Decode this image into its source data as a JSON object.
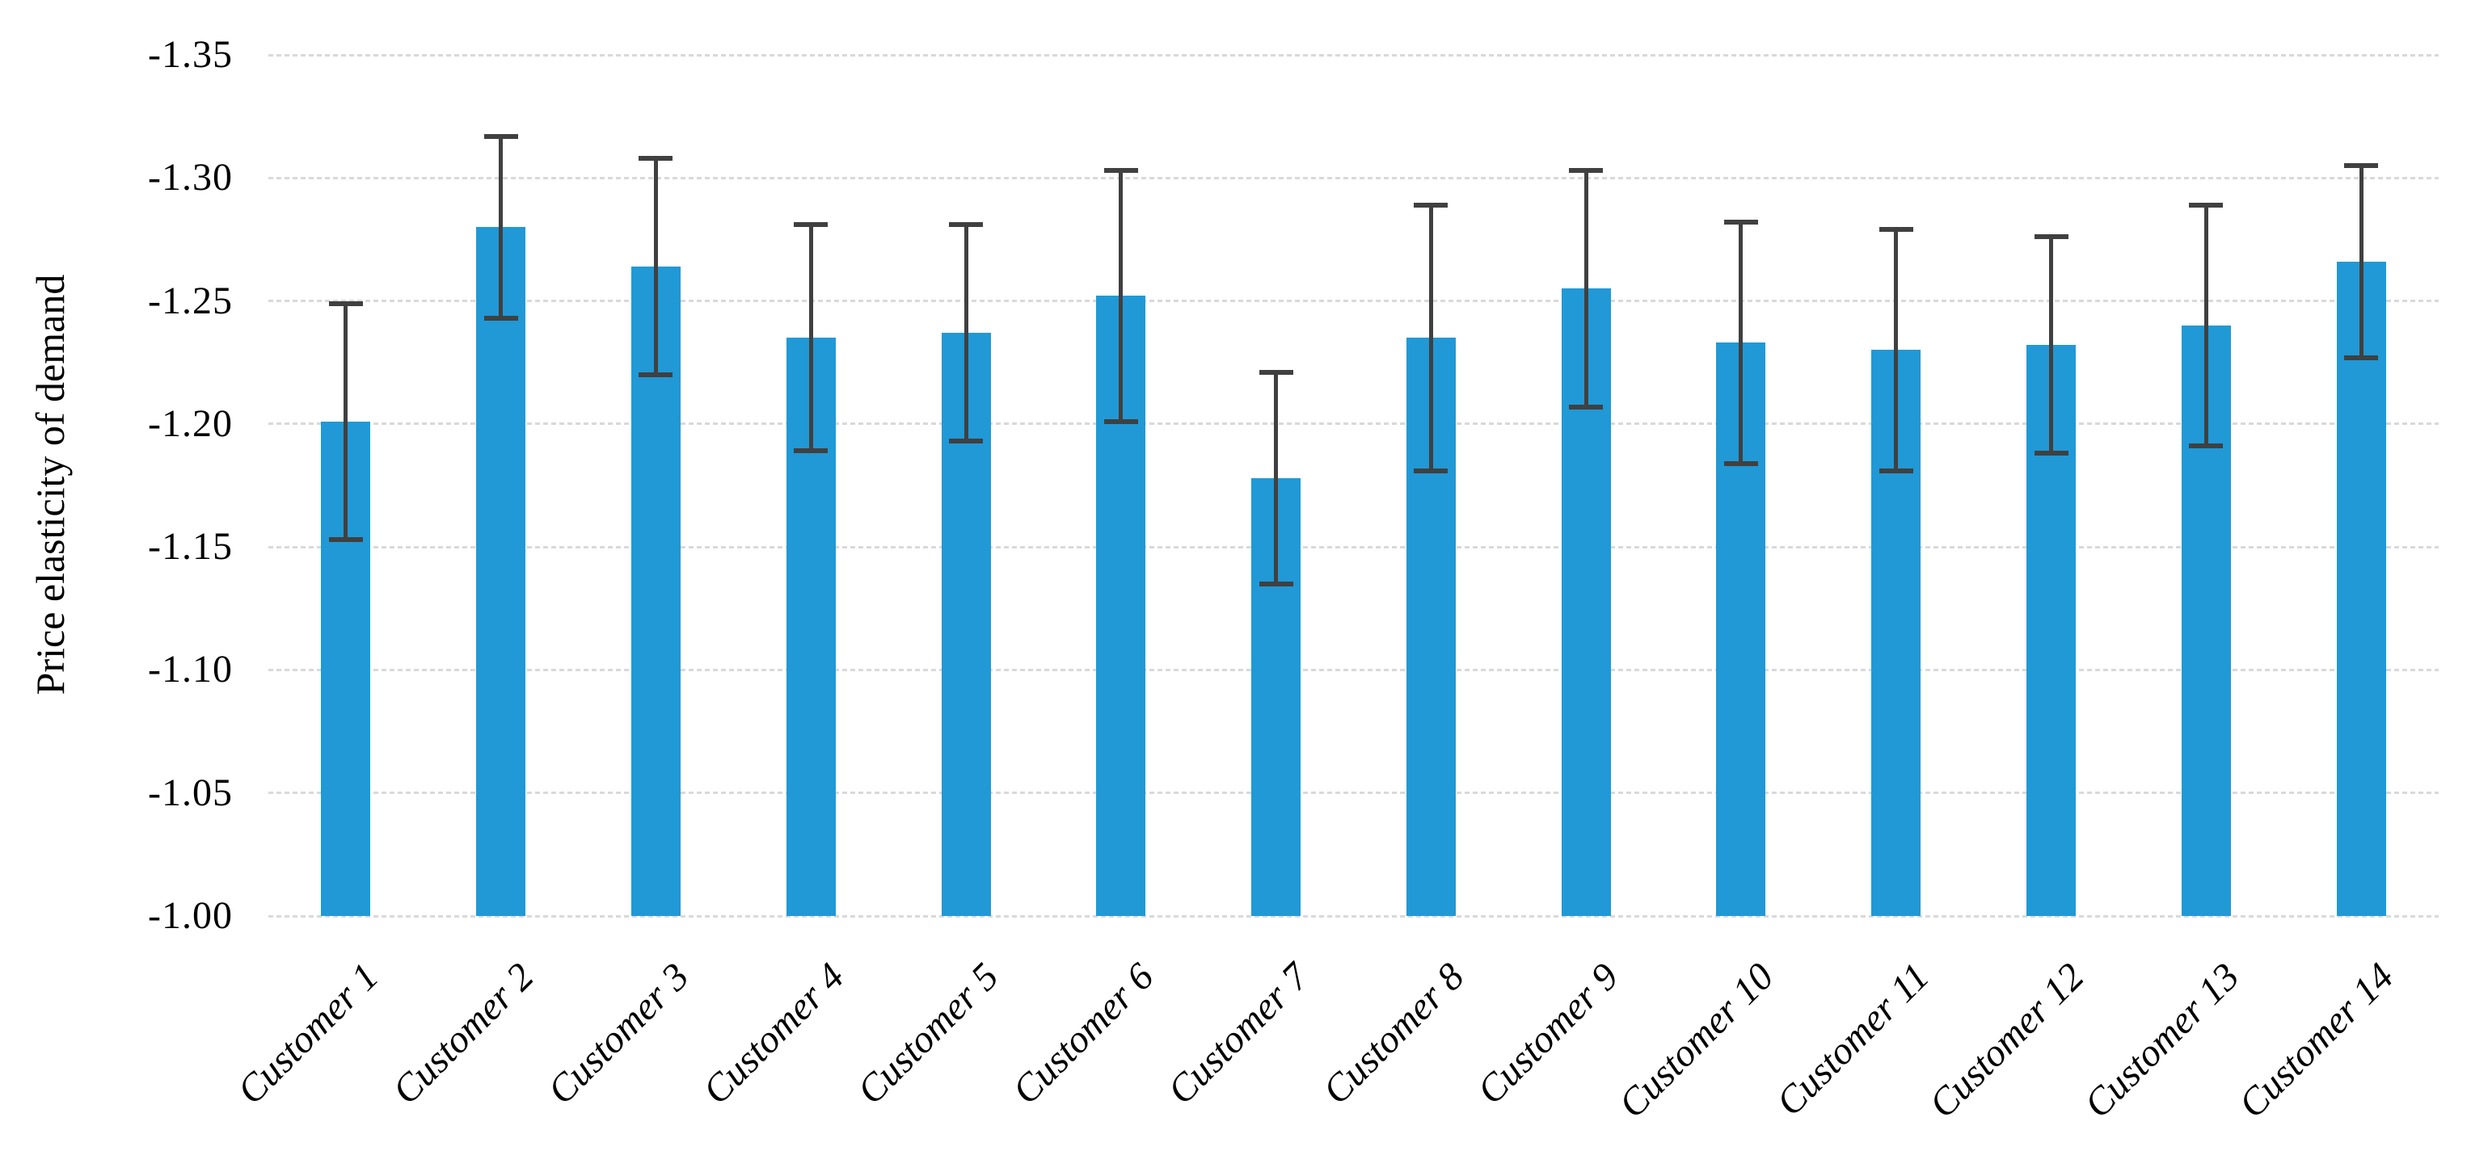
{
  "chart_data": {
    "type": "bar",
    "orientation": "vertical",
    "title": "",
    "xlabel": "",
    "ylabel": "Price elasticity of demand",
    "categories": [
      "Customer 1",
      "Customer 2",
      "Customer 3",
      "Customer 4",
      "Customer 5",
      "Customer 6",
      "Customer 7",
      "Customer 8",
      "Customer 9",
      "Customer 10",
      "Customer 11",
      "Customer 12",
      "Customer 13",
      "Customer 14"
    ],
    "values": [
      -1.201,
      -1.28,
      -1.264,
      -1.235,
      -1.237,
      -1.252,
      -1.178,
      -1.235,
      -1.255,
      -1.233,
      -1.23,
      -1.232,
      -1.24,
      -1.266
    ],
    "error_bars": [
      0.048,
      0.037,
      0.044,
      0.046,
      0.044,
      0.051,
      0.043,
      0.054,
      0.048,
      0.049,
      0.049,
      0.044,
      0.049,
      0.039
    ],
    "y_ticks_top_to_bottom": [
      "-1.35",
      "-1.30",
      "-1.25",
      "-1.20",
      "-1.15",
      "-1.10",
      "-1.05",
      "-1.00"
    ],
    "ylim_bottom_to_top": [
      -1.0,
      -1.35
    ],
    "axis_note": "magnitude increases upward; bars hang from -1.00 baseline at bottom",
    "grid": "horizontal dashed gridlines",
    "legend": "none",
    "bar_color": "#2099D6",
    "error_bar_color": "#404040",
    "gridline_color": "#D9D9D9",
    "text_color": "#000000"
  }
}
